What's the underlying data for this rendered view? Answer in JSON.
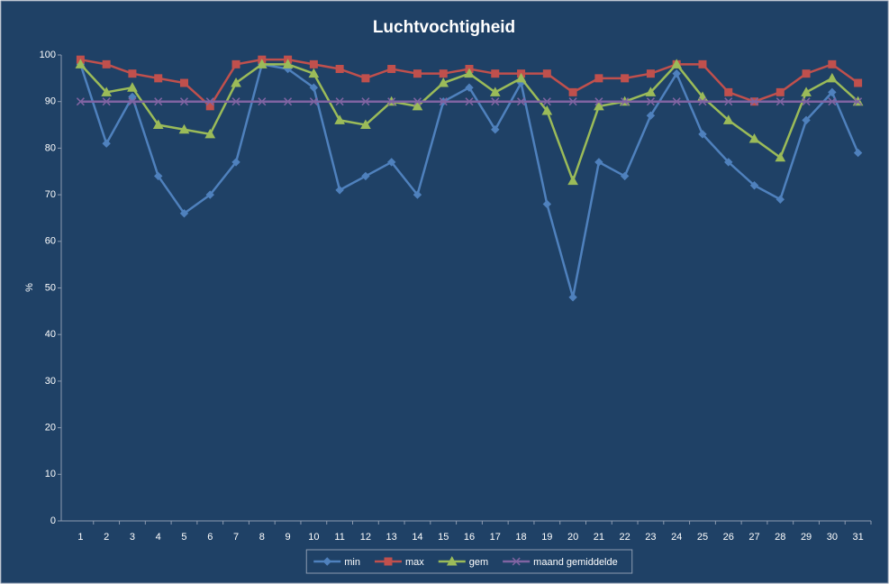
{
  "chart_data": {
    "type": "line",
    "title": "Luchtvochtigheid",
    "y_label": "%",
    "categories": [
      "1",
      "2",
      "3",
      "4",
      "5",
      "6",
      "7",
      "8",
      "9",
      "10",
      "11",
      "12",
      "13",
      "14",
      "15",
      "16",
      "17",
      "18",
      "19",
      "20",
      "21",
      "22",
      "23",
      "24",
      "25",
      "26",
      "27",
      "28",
      "29",
      "30",
      "31"
    ],
    "series": [
      {
        "name": "min",
        "color": "#4f81bd",
        "marker": "diamond",
        "values": [
          98,
          81,
          91,
          74,
          66,
          70,
          77,
          98,
          97,
          93,
          71,
          74,
          77,
          70,
          90,
          93,
          84,
          94,
          68,
          48,
          77,
          74,
          87,
          96,
          83,
          77,
          72,
          69,
          86,
          92,
          79
        ]
      },
      {
        "name": "max",
        "color": "#c0504d",
        "marker": "square",
        "values": [
          99,
          98,
          96,
          95,
          94,
          89,
          98,
          99,
          99,
          98,
          97,
          95,
          97,
          96,
          96,
          97,
          96,
          96,
          96,
          92,
          95,
          95,
          96,
          98,
          98,
          92,
          90,
          92,
          96,
          98,
          94
        ]
      },
      {
        "name": "gem",
        "color": "#9bbb59",
        "marker": "triangle",
        "values": [
          98,
          92,
          93,
          85,
          84,
          83,
          94,
          98,
          98,
          96,
          86,
          85,
          90,
          89,
          94,
          96,
          92,
          95,
          88,
          73,
          89,
          90,
          92,
          98,
          91,
          86,
          82,
          78,
          92,
          95,
          90
        ]
      },
      {
        "name": "maand gemiddelde",
        "color": "#8064a2",
        "marker": "x",
        "values": [
          90,
          90,
          90,
          90,
          90,
          90,
          90,
          90,
          90,
          90,
          90,
          90,
          90,
          90,
          90,
          90,
          90,
          90,
          90,
          90,
          90,
          90,
          90,
          90,
          90,
          90,
          90,
          90,
          90,
          90,
          90
        ]
      }
    ],
    "ylim": [
      0,
      100
    ],
    "yticks": [
      0,
      10,
      20,
      30,
      40,
      50,
      60,
      70,
      80,
      90,
      100
    ],
    "grid": false,
    "legend": "bottom"
  }
}
